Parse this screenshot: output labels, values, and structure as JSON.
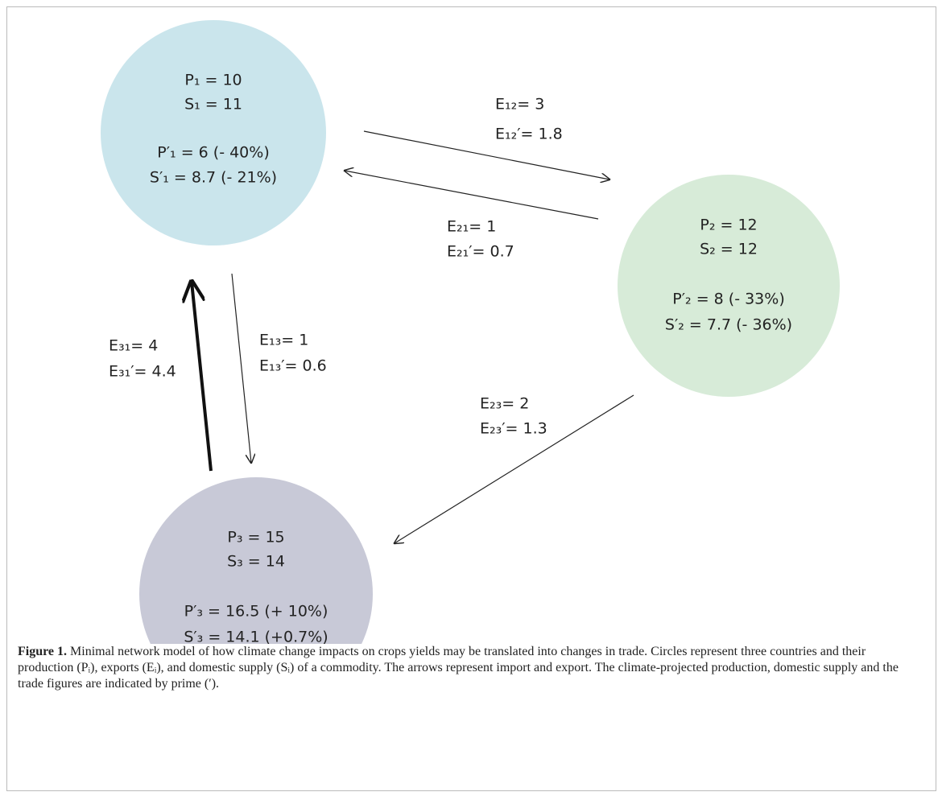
{
  "nodes": [
    {
      "lines": [
        "P₁ = 10",
        "S₁ = 11",
        "P′₁ = 6 (- 40%)",
        "S′₁ = 8.7 (- 21%)"
      ]
    },
    {
      "lines": [
        "P₂ = 12",
        "S₂ = 12",
        "P′₂ = 8 (- 33%)",
        "S′₂ = 7.7 (- 36%)"
      ]
    },
    {
      "lines": [
        "P₃ = 15",
        "S₃ = 14",
        "P′₃ = 16.5 (+ 10%)",
        "S′₃ = 14.1 (+0.7%)"
      ]
    }
  ],
  "edges": [
    {
      "lines": [
        "E₁₂= 3",
        "E₁₂′= 1.8"
      ]
    },
    {
      "lines": [
        "E₂₁= 1",
        "E₂₁′= 0.7"
      ]
    },
    {
      "lines": [
        "E₃₁= 4",
        "E₃₁′= 4.4"
      ]
    },
    {
      "lines": [
        "E₁₃= 1",
        "E₁₃′= 0.6"
      ]
    },
    {
      "lines": [
        "E₂₃= 2",
        "E₂₃′= 1.3"
      ]
    }
  ],
  "caption": {
    "label": "Figure 1.",
    "text": " Minimal network model of how climate change impacts on crops yields may be translated into changes in trade. Circles represent three countries and their production (Pᵢ), exports (Eᵢ), and domestic supply (Sᵢ) of a commodity. The arrows represent import and export. The climate-projected production, domestic supply and the trade figures are indicated by prime (′)."
  }
}
